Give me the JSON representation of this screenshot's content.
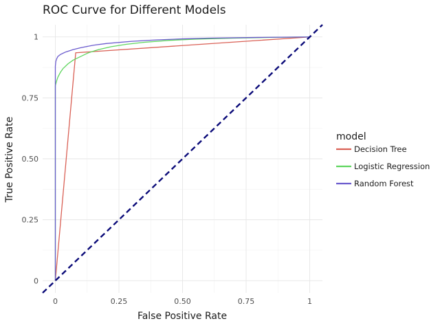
{
  "chart_data": {
    "type": "line",
    "title": "ROC Curve for Different Models",
    "xlabel": "False Positive Rate",
    "ylabel": "True Positive Rate",
    "xlim": [
      -0.05,
      1.05
    ],
    "ylim": [
      -0.05,
      1.05
    ],
    "x_ticks": [
      0,
      0.25,
      0.5,
      0.75,
      1
    ],
    "x_tick_labels": [
      "0",
      "0.25",
      "0.50",
      "0.75",
      "1"
    ],
    "y_ticks": [
      0,
      0.25,
      0.5,
      0.75,
      1
    ],
    "y_tick_labels": [
      "0",
      "0.25",
      "0.50",
      "0.75",
      "1"
    ],
    "grid": true,
    "legend": {
      "title": "model",
      "position": "right"
    },
    "series": [
      {
        "name": "Decision Tree",
        "color": "#d95f54",
        "x": [
          0,
          0.08,
          1
        ],
        "y": [
          0,
          0.935,
          1
        ]
      },
      {
        "name": "Logistic Regression",
        "color": "#5dd55d",
        "x": [
          0,
          0,
          0.005,
          0.01,
          0.02,
          0.03,
          0.05,
          0.07,
          0.1,
          0.13,
          0.17,
          0.22,
          0.28,
          0.35,
          0.45,
          0.55,
          0.7,
          0.85,
          1
        ],
        "y": [
          0,
          0.8,
          0.82,
          0.835,
          0.855,
          0.87,
          0.89,
          0.905,
          0.92,
          0.935,
          0.948,
          0.96,
          0.97,
          0.978,
          0.986,
          0.991,
          0.995,
          0.998,
          1
        ]
      },
      {
        "name": "Random Forest",
        "color": "#6a5acd",
        "x": [
          0,
          0,
          0.002,
          0.005,
          0.01,
          0.02,
          0.04,
          0.07,
          0.1,
          0.15,
          0.2,
          0.3,
          0.4,
          0.5,
          0.6,
          0.8,
          1
        ],
        "y": [
          0,
          0.88,
          0.9,
          0.91,
          0.92,
          0.928,
          0.938,
          0.948,
          0.956,
          0.966,
          0.973,
          0.982,
          0.988,
          0.992,
          0.995,
          0.998,
          1
        ]
      }
    ],
    "reference_line": {
      "x": [
        -0.05,
        1.05
      ],
      "y": [
        -0.05,
        1.05
      ],
      "color": "#0a0a78",
      "style": "dashed"
    }
  }
}
